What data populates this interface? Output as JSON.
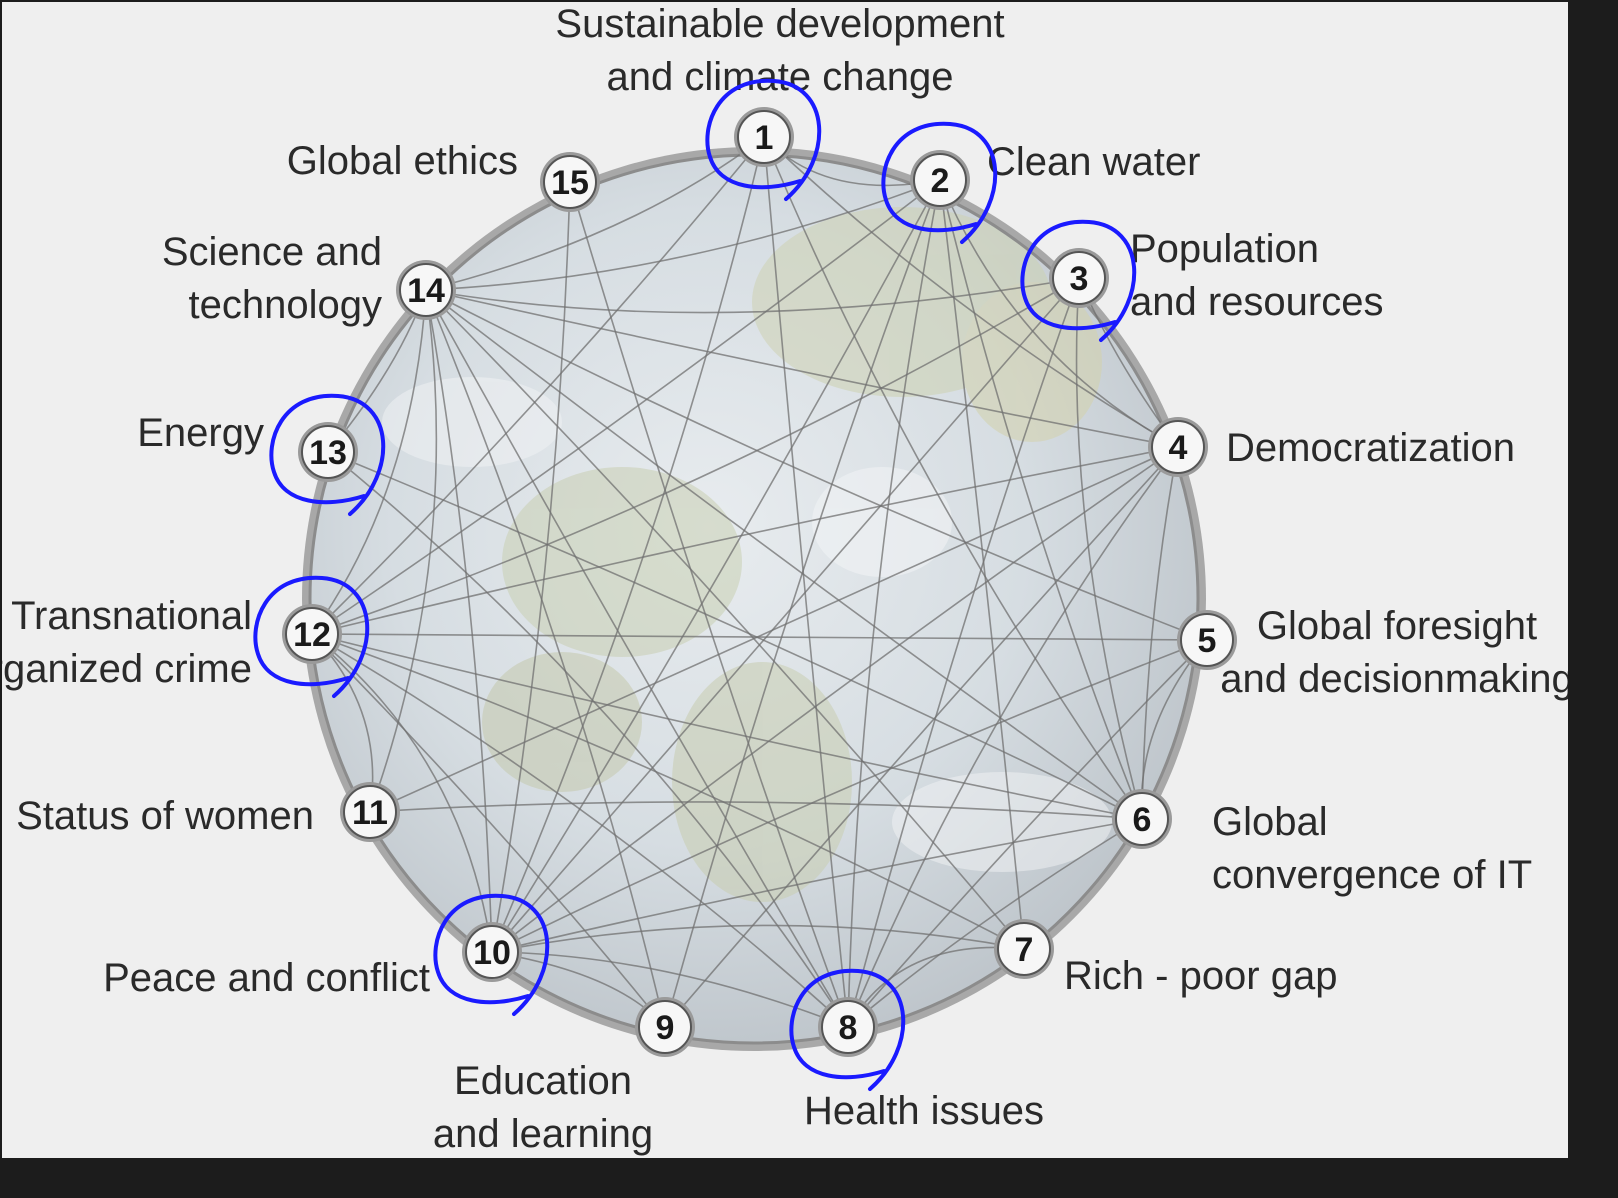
{
  "nodes": [
    {
      "num": "1",
      "label": [
        "Sustainable development",
        "and climate change"
      ],
      "circled": true
    },
    {
      "num": "2",
      "label": [
        "Clean water"
      ],
      "circled": true
    },
    {
      "num": "3",
      "label": [
        "Population",
        "and resources"
      ],
      "circled": true
    },
    {
      "num": "4",
      "label": [
        "Democratization"
      ],
      "circled": false
    },
    {
      "num": "5",
      "label": [
        "Global foresight",
        "and decisionmaking"
      ],
      "circled": false
    },
    {
      "num": "6",
      "label": [
        "Global",
        "convergence of IT"
      ],
      "circled": false
    },
    {
      "num": "7",
      "label": [
        "Rich - poor gap"
      ],
      "circled": false
    },
    {
      "num": "8",
      "label": [
        "Health issues"
      ],
      "circled": true
    },
    {
      "num": "9",
      "label": [
        "Education",
        "and learning"
      ],
      "circled": false
    },
    {
      "num": "10",
      "label": [
        "Peace and conflict"
      ],
      "circled": true
    },
    {
      "num": "11",
      "label": [
        "Status of women"
      ],
      "circled": false
    },
    {
      "num": "12",
      "label": [
        "Transnational",
        "organized crime"
      ],
      "circled": true
    },
    {
      "num": "13",
      "label": [
        "Energy"
      ],
      "circled": true
    },
    {
      "num": "14",
      "label": [
        "Science and",
        "technology"
      ],
      "circled": false
    },
    {
      "num": "15",
      "label": [
        "Global ethics"
      ],
      "circled": false
    }
  ],
  "colors": {
    "annotation": "#1a1aff",
    "ring": "#8c8c8c",
    "connector": "#707070",
    "background": "#efefef"
  }
}
